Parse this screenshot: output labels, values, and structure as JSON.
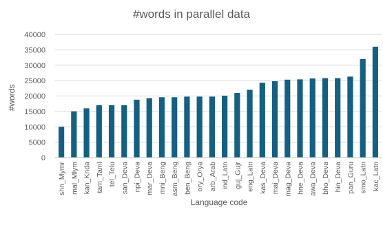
{
  "chart_data": {
    "type": "bar",
    "title": "#words in parallel data",
    "xlabel": "Language code",
    "ylabel": "#words",
    "ylim": [
      0,
      40000
    ],
    "yticks": [
      0,
      5000,
      10000,
      15000,
      20000,
      25000,
      30000,
      35000,
      40000
    ],
    "grid": true,
    "legend": "none",
    "bar_color": "#156082",
    "categories": [
      "shn_Mymr",
      "mal_Mlym",
      "kan_Knda",
      "tam_Taml",
      "tel_Telu",
      "san_Deva",
      "npi_Deva",
      "mar_Deva",
      "mni_Beng",
      "asm_Beng",
      "ben_Beng",
      "ory_Orya",
      "arb_Arab",
      "ind_Latn",
      "guj_Gujr",
      "eng_Latn",
      "kas_Deva",
      "mai_Deva",
      "mag_Deva",
      "hne_Deva",
      "awa_Deva",
      "bho_Deva",
      "hin_Deva",
      "pan_Guru",
      "smo_Latn",
      "kac_Latn"
    ],
    "values": [
      10000,
      15000,
      16000,
      17000,
      17000,
      17000,
      18800,
      19300,
      19600,
      19600,
      19800,
      19800,
      19800,
      20100,
      21000,
      22000,
      24300,
      24800,
      25300,
      25400,
      25700,
      25800,
      25800,
      26300,
      32000,
      36000
    ]
  }
}
